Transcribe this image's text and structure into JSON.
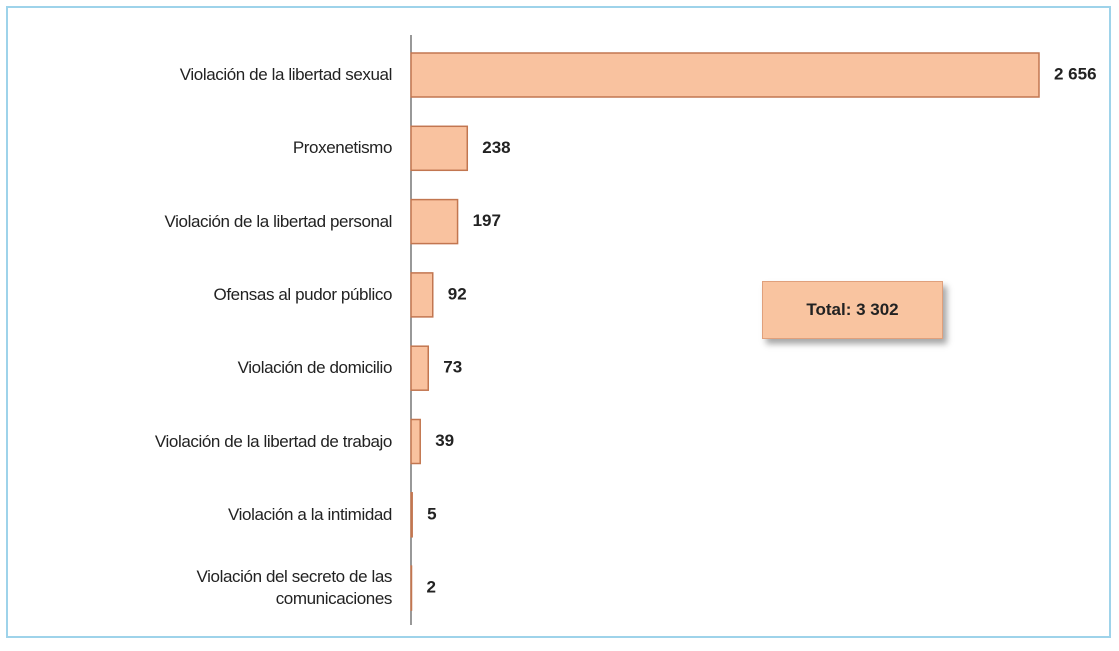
{
  "chart_data": {
    "type": "bar",
    "orientation": "horizontal",
    "categories": [
      "Violación de la libertad sexual",
      "Proxenetismo",
      "Violación de la libertad personal",
      "Ofensas al pudor público",
      "Violación de domicilio",
      "Violación de la libertad de trabajo",
      "Violación a la intimidad",
      "Violación del secreto de las\ncomunicaciones"
    ],
    "values": [
      2656,
      238,
      197,
      92,
      73,
      39,
      5,
      2
    ],
    "value_labels": [
      "2 656",
      "238",
      "197",
      "92",
      "73",
      "39",
      "5",
      "2"
    ],
    "color": "#f9c29f",
    "annotation": "Total: 3 302"
  }
}
